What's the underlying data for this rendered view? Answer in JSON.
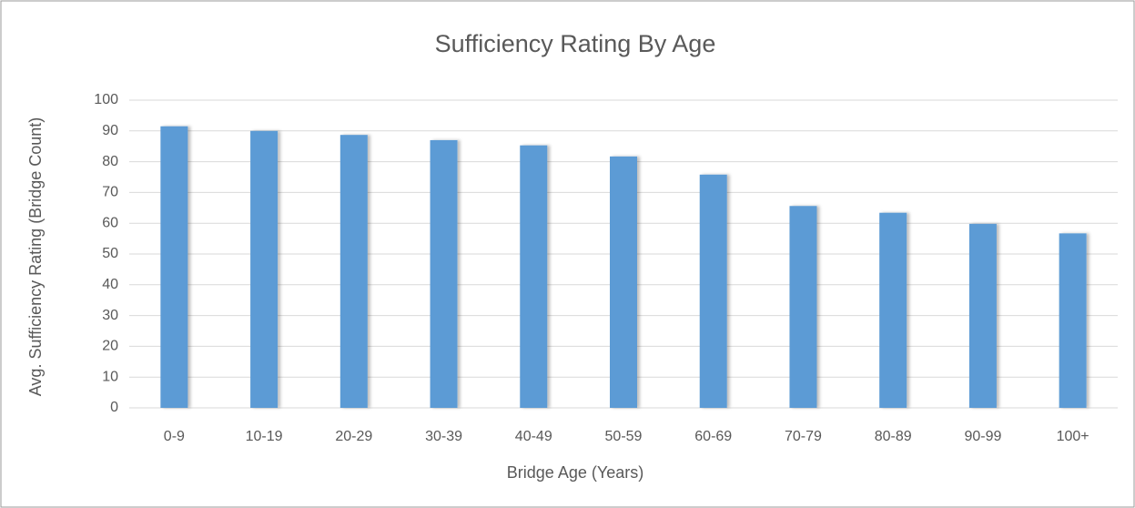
{
  "chart_data": {
    "type": "bar",
    "title": "Sufficiency Rating By Age",
    "x_label": "Bridge Age (Years)",
    "y_label": "Avg.  Sufficiency Rating (Bridge Count)",
    "categories": [
      "0-9",
      "10-19",
      "20-29",
      "30-39",
      "40-49",
      "50-59",
      "60-69",
      "70-79",
      "80-89",
      "90-99",
      "100+"
    ],
    "values": [
      91.5,
      90,
      88.7,
      87,
      85.3,
      81.7,
      75.8,
      65.6,
      63.4,
      59.8,
      56.7
    ],
    "color": "#5b9bd5",
    "ylim": [
      0,
      100
    ],
    "yticks": [
      0,
      10,
      20,
      30,
      40,
      50,
      60,
      70,
      80,
      90,
      100
    ],
    "grid": true
  }
}
